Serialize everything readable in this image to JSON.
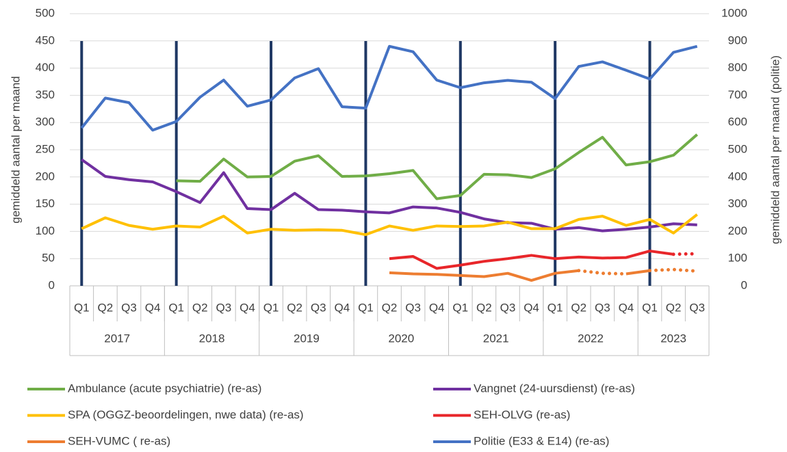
{
  "chart_data": {
    "type": "line",
    "y_label": "gemiddeld aantal per maand",
    "y2_label": "gemiddeld aantal per maand (politie)",
    "categories": [
      "Q1",
      "Q2",
      "Q3",
      "Q4",
      "Q1",
      "Q2",
      "Q3",
      "Q4",
      "Q1",
      "Q2",
      "Q3",
      "Q4",
      "Q1",
      "Q2",
      "Q3",
      "Q4",
      "Q1",
      "Q2",
      "Q3",
      "Q4",
      "Q1",
      "Q2",
      "Q3",
      "Q4",
      "Q1",
      "Q2",
      "Q3"
    ],
    "category_groups": [
      {
        "label": "2017",
        "count": 4
      },
      {
        "label": "2018",
        "count": 4
      },
      {
        "label": "2019",
        "count": 4
      },
      {
        "label": "2020",
        "count": 4
      },
      {
        "label": "2021",
        "count": 4
      },
      {
        "label": "2022",
        "count": 4
      },
      {
        "label": "2023",
        "count": 3
      }
    ],
    "group_start_line_color": "#1f3864",
    "ylim": [
      0,
      500
    ],
    "yticks": [
      0,
      50,
      100,
      150,
      200,
      250,
      300,
      350,
      400,
      450,
      500
    ],
    "y2lim": [
      0,
      1000
    ],
    "y2ticks": [
      0,
      100,
      200,
      300,
      400,
      500,
      600,
      700,
      800,
      900,
      1000
    ],
    "grid": true,
    "series": [
      {
        "name": "Ambulance (acute psychiatrie) (re-as)",
        "color": "#70ad47",
        "dotted": [],
        "values": [
          null,
          null,
          null,
          null,
          193,
          192,
          233,
          200,
          201,
          229,
          239,
          201,
          202,
          206,
          212,
          160,
          166,
          205,
          204,
          199,
          215,
          245,
          273,
          222,
          228,
          240,
          278
        ]
      },
      {
        "name": "Vangnet (24-uursdienst) (re-as)",
        "color": "#7030a0",
        "dotted": [],
        "values": [
          232,
          201,
          195,
          191,
          173,
          153,
          208,
          142,
          140,
          170,
          140,
          139,
          136,
          134,
          145,
          143,
          135,
          123,
          116,
          115,
          104,
          107,
          101,
          104,
          108,
          114,
          112
        ]
      },
      {
        "name": "SPA (OGGZ-beoordelingen, nwe data) (re-as)",
        "color": "#ffc000",
        "dotted": [],
        "values": [
          105,
          125,
          111,
          104,
          110,
          108,
          128,
          97,
          104,
          102,
          103,
          102,
          94,
          110,
          102,
          110,
          109,
          110,
          117,
          105,
          105,
          122,
          128,
          111,
          122,
          97,
          131
        ]
      },
      {
        "name": "SEH-OLVG  (re-as)",
        "color": "#e8262a",
        "dotted": [
          25
        ],
        "values": [
          null,
          null,
          null,
          null,
          null,
          null,
          null,
          null,
          null,
          null,
          null,
          null,
          null,
          50,
          54,
          32,
          38,
          45,
          50,
          56,
          50,
          53,
          51,
          52,
          64,
          58,
          59
        ]
      },
      {
        "name": "SEH-VUMC ( re-as)",
        "color": "#ed7d31",
        "dotted": [
          21,
          22,
          24,
          25
        ],
        "values": [
          null,
          null,
          null,
          null,
          null,
          null,
          null,
          null,
          null,
          null,
          null,
          null,
          null,
          24,
          22,
          21,
          19,
          17,
          23,
          10,
          23,
          28,
          23,
          22,
          28,
          30,
          27
        ]
      },
      {
        "name": "Politie (E33 & E14) (re-as)",
        "color": "#4472c4",
        "dotted": [],
        "axis": "y2",
        "values": [
          580,
          690,
          673,
          572,
          604,
          693,
          756,
          660,
          683,
          764,
          798,
          658,
          653,
          880,
          860,
          756,
          728,
          746,
          755,
          748,
          688,
          806,
          823,
          792,
          760,
          858,
          880
        ]
      }
    ]
  }
}
